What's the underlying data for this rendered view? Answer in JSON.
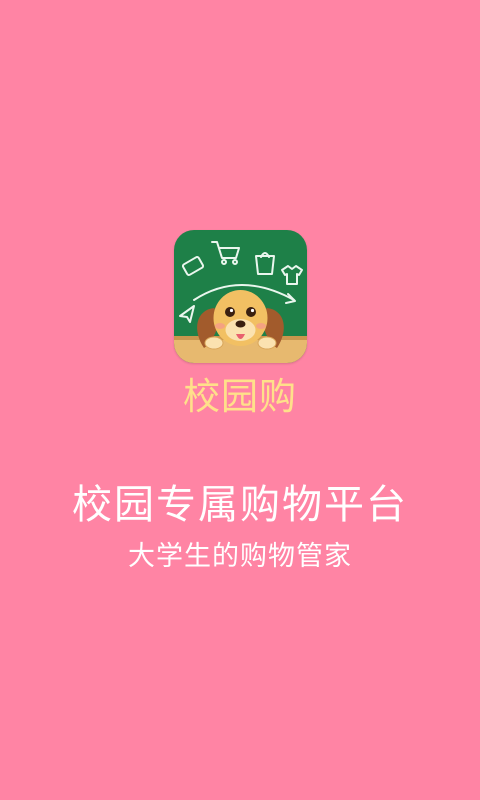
{
  "app": {
    "name": "校园购",
    "slogan": "校园专属购物平台",
    "sub_slogan": "大学生的购物管家"
  },
  "colors": {
    "background": "#FF84A4",
    "app_name": "#FFE08A",
    "text": "#FFFFFF",
    "logo_board": "#1E8048",
    "logo_frame": "#E7B96F"
  },
  "icons": {
    "logo": "app-logo-dog-chalkboard-icon"
  }
}
